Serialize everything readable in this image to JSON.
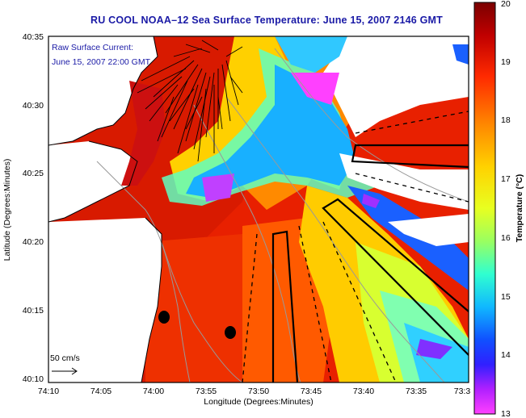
{
  "title": "RU COOL   NOAA–12  Sea Surface Temperature:  June 15, 2007 2146 GMT",
  "map": {
    "inset_label_line1": "Raw Surface Current:",
    "inset_label_line2": "June 15, 2007 22:00 GMT",
    "scale_label": "50 cm/s",
    "xlabel": "Longitude (Degrees:Minutes)",
    "ylabel": "Latitude (Degrees:Minutes)",
    "x_ticks": [
      "74:10",
      "74:05",
      "74:00",
      "73:55",
      "73:50",
      "73:45",
      "73:40",
      "73:35",
      "73:3"
    ],
    "y_ticks": [
      "40:35",
      "40:30",
      "40:25",
      "40:20",
      "40:15",
      "40:10"
    ]
  },
  "colorbar": {
    "label": "Temperature (°C)",
    "ticks": [
      "20",
      "19",
      "18",
      "17",
      "16",
      "15",
      "14",
      "13"
    ],
    "range": [
      13,
      20
    ]
  },
  "colors": {
    "title": "#1a1aa6",
    "land": "#ffffff",
    "warm": "#cc1010",
    "cool": "#1a5cff"
  }
}
